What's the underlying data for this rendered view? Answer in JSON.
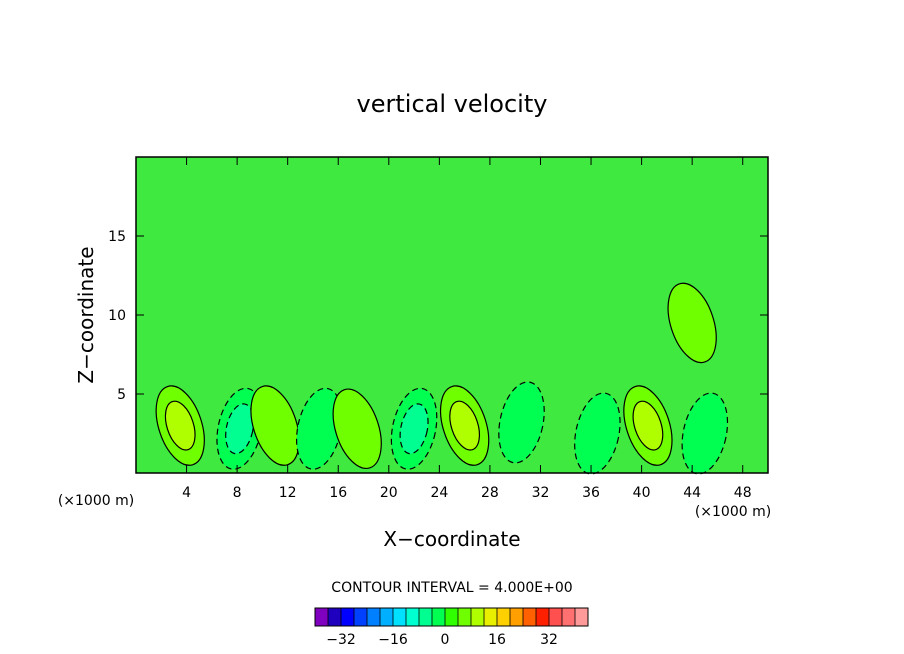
{
  "chart_data": {
    "type": "heatmap",
    "title": "vertical velocity",
    "xlabel": "X−coordinate",
    "ylabel": "Z−coordinate",
    "x_unit_label": "(×1000 m)",
    "x_unit_label_right": "(×1000 m)",
    "x_ticks": [
      "4",
      "8",
      "12",
      "16",
      "20",
      "24",
      "28",
      "32",
      "36",
      "40",
      "44",
      "48"
    ],
    "x_tick_values": [
      4,
      8,
      12,
      16,
      20,
      24,
      28,
      32,
      36,
      40,
      44,
      48
    ],
    "y_ticks": [
      "5",
      "10",
      "15"
    ],
    "y_tick_values": [
      5,
      10,
      15
    ],
    "xlim": [
      0,
      50
    ],
    "ylim": [
      0,
      20
    ],
    "background_value": 0,
    "features": [
      {
        "kind": "updraft",
        "x": 3.5,
        "z": 3.0,
        "peak": 8
      },
      {
        "kind": "downdraft",
        "x": 8.2,
        "z": 2.8,
        "peak": -6
      },
      {
        "kind": "updraft",
        "x": 11.0,
        "z": 3.0,
        "peak": 4
      },
      {
        "kind": "downdraft",
        "x": 14.5,
        "z": 2.8,
        "peak": -4
      },
      {
        "kind": "updraft",
        "x": 17.5,
        "z": 2.8,
        "peak": 4
      },
      {
        "kind": "downdraft",
        "x": 22.0,
        "z": 2.8,
        "peak": -6
      },
      {
        "kind": "updraft",
        "x": 26.0,
        "z": 3.0,
        "peak": 8
      },
      {
        "kind": "downdraft",
        "x": 30.5,
        "z": 3.2,
        "peak": -4
      },
      {
        "kind": "downdraft",
        "x": 36.5,
        "z": 2.5,
        "peak": -4
      },
      {
        "kind": "updraft",
        "x": 40.5,
        "z": 3.0,
        "peak": 8
      },
      {
        "kind": "downdraft",
        "x": 45.0,
        "z": 2.5,
        "peak": -4
      },
      {
        "kind": "updraft",
        "x": 44.0,
        "z": 9.5,
        "peak": 4
      }
    ],
    "contour_interval_text": "CONTOUR INTERVAL = 4.000E+00",
    "colorbar": {
      "colors": [
        "#7f00bf",
        "#1f00bf",
        "#0000ff",
        "#0040ff",
        "#0080ff",
        "#00b0ff",
        "#00e0ff",
        "#00ffd0",
        "#00ff90",
        "#00ff50",
        "#30ff00",
        "#70ff00",
        "#b0ff00",
        "#e8f000",
        "#ffd000",
        "#ffa000",
        "#ff6000",
        "#ff2000",
        "#ff5050",
        "#ff7070",
        "#ff9a9a"
      ],
      "tick_labels": [
        "−32",
        "−16",
        "0",
        "16",
        "32"
      ],
      "tick_values": [
        -32,
        -16,
        0,
        16,
        32
      ],
      "range": [
        -40,
        44
      ]
    }
  }
}
